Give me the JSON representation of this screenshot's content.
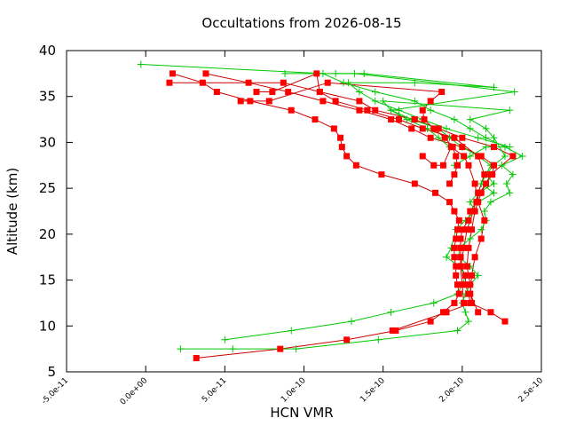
{
  "chart_data": {
    "type": "line",
    "title": "Occultations from 2026-08-15",
    "xlabel": "HCN VMR",
    "ylabel": "Altitude (km)",
    "xlim": [
      -5e-11,
      2.5e-10
    ],
    "ylim": [
      5,
      40
    ],
    "x_ticks": [
      -5e-11,
      0,
      5e-11,
      1e-10,
      1.5e-10,
      2e-10,
      2.5e-10
    ],
    "x_tick_labels": [
      "-5.0e-11",
      "0.0e+00",
      "5.0e-11",
      "1.0e-10",
      "1.5e-10",
      "2.0e-10",
      "2.5e-10"
    ],
    "y_ticks": [
      5,
      10,
      15,
      20,
      25,
      30,
      35,
      40
    ],
    "y_tick_labels": [
      "5",
      "10",
      "15",
      "20",
      "25",
      "30",
      "35",
      "40"
    ],
    "grid": false,
    "legend": "none",
    "colors": {
      "red_series": "#ff0000",
      "red_line": "#cc0000",
      "green_series": "#00c800"
    },
    "series": [
      {
        "marker": "square",
        "color": "#ff0000",
        "points": [
          [
            2.27e-10,
            10.5
          ],
          [
            2.18e-10,
            11.5
          ],
          [
            2.05e-10,
            12.5
          ],
          [
            2.04e-10,
            13.5
          ],
          [
            2.02e-10,
            14.5
          ],
          [
            2.02e-10,
            15.5
          ],
          [
            1.99e-10,
            16.5
          ],
          [
            1.99e-10,
            17.5
          ],
          [
            1.99e-10,
            18.5
          ],
          [
            1.99e-10,
            19.5
          ],
          [
            2e-10,
            20.5
          ],
          [
            2.04e-10,
            21.5
          ],
          [
            2.05e-10,
            22.5
          ],
          [
            2.09e-10,
            23.5
          ],
          [
            2.11e-10,
            24.5
          ],
          [
            2.15e-10,
            25.5
          ],
          [
            2.19e-10,
            26.5
          ],
          [
            2.2e-10,
            27.5
          ],
          [
            2.12e-10,
            28.5
          ],
          [
            2e-10,
            29.5
          ],
          [
            1.8e-10,
            30.5
          ],
          [
            1.68e-10,
            31.5
          ],
          [
            1.55e-10,
            32.5
          ],
          [
            1.35e-10,
            33.5
          ],
          [
            1.12e-10,
            34.5
          ],
          [
            9e-11,
            35.5
          ],
          [
            6.5e-11,
            36.5
          ],
          [
            3.8e-11,
            37.5
          ]
        ]
      },
      {
        "marker": "square",
        "color": "#ff0000",
        "points": [
          [
            3.2e-11,
            6.5
          ],
          [
            8.5e-11,
            7.5
          ],
          [
            1.27e-10,
            8.5
          ],
          [
            1.58e-10,
            9.5
          ],
          [
            1.8e-10,
            10.5
          ],
          [
            1.88e-10,
            11.5
          ],
          [
            1.95e-10,
            12.5
          ],
          [
            1.98e-10,
            13.5
          ],
          [
            1.97e-10,
            14.5
          ],
          [
            1.96e-10,
            15.5
          ],
          [
            1.96e-10,
            16.5
          ],
          [
            1.95e-10,
            17.5
          ],
          [
            1.95e-10,
            18.5
          ],
          [
            1.96e-10,
            19.5
          ],
          [
            1.97e-10,
            20.5
          ],
          [
            1.98e-10,
            21.5
          ],
          [
            1.95e-10,
            22.5
          ],
          [
            1.92e-10,
            23.5
          ],
          [
            1.83e-10,
            24.5
          ],
          [
            1.7e-10,
            25.5
          ],
          [
            1.49e-10,
            26.5
          ],
          [
            1.33e-10,
            27.5
          ],
          [
            1.27e-10,
            28.5
          ],
          [
            1.24e-10,
            29.5
          ],
          [
            1.23e-10,
            30.5
          ],
          [
            1.19e-10,
            31.5
          ],
          [
            1.07e-10,
            32.5
          ],
          [
            9.2e-11,
            33.5
          ],
          [
            6.6e-11,
            34.5
          ],
          [
            4.5e-11,
            35.5
          ],
          [
            3.6e-11,
            36.5
          ],
          [
            1.7e-11,
            37.5
          ]
        ]
      },
      {
        "marker": "square",
        "color": "#ff0000",
        "points": [
          [
            1.56e-10,
            9.5
          ],
          [
            1.9e-10,
            11.5
          ],
          [
            2.06e-10,
            12.5
          ],
          [
            2.05e-10,
            14.5
          ],
          [
            2.03e-10,
            16.5
          ],
          [
            2.04e-10,
            18.5
          ],
          [
            2.06e-10,
            20.5
          ],
          [
            2.08e-10,
            22.5
          ],
          [
            2.12e-10,
            24.5
          ],
          [
            2.18e-10,
            26.5
          ],
          [
            2.32e-10,
            28.5
          ],
          [
            2.2e-10,
            29.5
          ],
          [
            2e-10,
            30.5
          ],
          [
            1.85e-10,
            31.5
          ],
          [
            1.7e-10,
            32.5
          ],
          [
            1.45e-10,
            33.5
          ],
          [
            1.35e-10,
            34.5
          ],
          [
            1.1e-10,
            35.5
          ],
          [
            8.7e-11,
            36.5
          ],
          [
            1.5e-11,
            36.5
          ]
        ]
      },
      {
        "marker": "square",
        "color": "#ff0000",
        "points": [
          [
            2.01e-10,
            12.5
          ],
          [
            2e-10,
            14.5
          ],
          [
            1.99e-10,
            16.5
          ],
          [
            2.01e-10,
            18.5
          ],
          [
            2.03e-10,
            20.5
          ],
          [
            2.07e-10,
            22.5
          ],
          [
            2.1e-10,
            24.5
          ],
          [
            2.14e-10,
            26.5
          ],
          [
            2.1e-10,
            28.5
          ],
          [
            1.95e-10,
            30.5
          ],
          [
            1.75e-10,
            31.5
          ],
          [
            1.6e-10,
            32.5
          ],
          [
            1.4e-10,
            33.5
          ],
          [
            1.2e-10,
            34.5
          ],
          [
            1.1e-10,
            35.5
          ],
          [
            1.08e-10,
            37.5
          ],
          [
            8e-11,
            35.5
          ],
          [
            7e-11,
            35.5
          ]
        ]
      },
      {
        "marker": "square",
        "color": "#ff0000",
        "points": [
          [
            1.92e-10,
            25.5
          ],
          [
            1.95e-10,
            26.5
          ],
          [
            1.97e-10,
            27.5
          ],
          [
            1.96e-10,
            28.5
          ],
          [
            1.94e-10,
            29.5
          ],
          [
            1.89e-10,
            30.5
          ],
          [
            1.82e-10,
            31.5
          ],
          [
            1.76e-10,
            32.5
          ],
          [
            1.75e-10,
            33.5
          ],
          [
            1.8e-10,
            34.5
          ],
          [
            1.87e-10,
            35.5
          ],
          [
            1.15e-10,
            36.5
          ],
          [
            7.8e-11,
            34.5
          ],
          [
            6e-11,
            34.5
          ]
        ]
      },
      {
        "marker": "square",
        "color": "#ff0000",
        "points": [
          [
            1.75e-10,
            28.5
          ],
          [
            1.82e-10,
            27.5
          ],
          [
            1.88e-10,
            27.5
          ],
          [
            1.93e-10,
            29.5
          ],
          [
            2.01e-10,
            28.5
          ],
          [
            2.04e-10,
            27.5
          ],
          [
            2.08e-10,
            25.5
          ],
          [
            2.1e-10,
            23.5
          ],
          [
            2.14e-10,
            21.5
          ],
          [
            2.12e-10,
            19.5
          ],
          [
            2.08e-10,
            17.5
          ],
          [
            2.06e-10,
            15.5
          ],
          [
            2.05e-10,
            13.5
          ],
          [
            2.1e-10,
            11.5
          ]
        ]
      },
      {
        "marker": "cross",
        "color": "#00c800",
        "points": [
          [
            2.2e-11,
            7.5
          ],
          [
            5.5e-11,
            7.5
          ],
          [
            9.5e-11,
            7.5
          ],
          [
            1.47e-10,
            8.5
          ],
          [
            1.97e-10,
            9.5
          ],
          [
            2.04e-10,
            10.5
          ],
          [
            2.02e-10,
            11.5
          ],
          [
            2e-10,
            12.5
          ],
          [
            2.02e-10,
            13.5
          ],
          [
            2.05e-10,
            14.5
          ],
          [
            2.1e-10,
            15.5
          ],
          [
            2.05e-10,
            16.5
          ],
          [
            1.98e-10,
            17.5
          ],
          [
            1.98e-10,
            18.5
          ],
          [
            2.05e-10,
            19.5
          ],
          [
            2.12e-10,
            20.5
          ],
          [
            2.15e-10,
            21.5
          ],
          [
            2.14e-10,
            22.5
          ],
          [
            2.18e-10,
            23.5
          ],
          [
            2.3e-10,
            24.5
          ],
          [
            2.28e-10,
            25.5
          ],
          [
            2.32e-10,
            26.5
          ],
          [
            2.25e-10,
            27.5
          ],
          [
            2.38e-10,
            28.5
          ],
          [
            2.27e-10,
            29.5
          ],
          [
            2.15e-10,
            30.5
          ],
          [
            2.05e-10,
            31.5
          ],
          [
            1.95e-10,
            32.5
          ],
          [
            1.8e-10,
            33.5
          ],
          [
            1.7e-10,
            34.5
          ],
          [
            1.45e-10,
            35.5
          ],
          [
            1.25e-10,
            36.5
          ],
          [
            1.12e-10,
            37.5
          ],
          [
            -3e-12,
            38.5
          ]
        ]
      },
      {
        "marker": "cross",
        "color": "#00c800",
        "points": [
          [
            5e-11,
            8.5
          ],
          [
            9.2e-11,
            9.5
          ],
          [
            1.3e-10,
            10.5
          ],
          [
            1.55e-10,
            11.5
          ],
          [
            1.82e-10,
            12.5
          ],
          [
            1.97e-10,
            13.5
          ],
          [
            2e-10,
            14.5
          ],
          [
            2.02e-10,
            15.5
          ],
          [
            1.98e-10,
            16.5
          ],
          [
            1.9e-10,
            17.5
          ],
          [
            1.93e-10,
            18.5
          ],
          [
            1.96e-10,
            20.5
          ],
          [
            2.02e-10,
            21.5
          ],
          [
            2.08e-10,
            22.5
          ],
          [
            2.05e-10,
            23.5
          ],
          [
            2.1e-10,
            24.5
          ],
          [
            2.2e-10,
            25.5
          ],
          [
            2.15e-10,
            26.5
          ],
          [
            2.18e-10,
            27.5
          ],
          [
            2.1e-10,
            28.5
          ],
          [
            2e-10,
            29.5
          ],
          [
            1.92e-10,
            30.5
          ],
          [
            1.85e-10,
            31.5
          ],
          [
            1.68e-10,
            32.5
          ],
          [
            1.55e-10,
            33.5
          ],
          [
            2.33e-10,
            35.5
          ],
          [
            1.32e-10,
            37.5
          ],
          [
            1.2e-10,
            37.5
          ]
        ]
      },
      {
        "marker": "cross",
        "color": "#00c800",
        "points": [
          [
            1.95e-10,
            27.5
          ],
          [
            2.05e-10,
            28.5
          ],
          [
            2.15e-10,
            29.5
          ],
          [
            2.3e-10,
            29.5
          ],
          [
            2.1e-10,
            30.5
          ],
          [
            1.9e-10,
            31.5
          ],
          [
            1.75e-10,
            32.5
          ],
          [
            1.6e-10,
            33.5
          ],
          [
            1.45e-10,
            34.5
          ],
          [
            1.35e-10,
            35.5
          ],
          [
            1.28e-10,
            36.5
          ],
          [
            1.7e-10,
            36.5
          ],
          [
            2.2e-10,
            36.0
          ],
          [
            1.38e-10,
            37.5
          ],
          [
            8.8e-11,
            37.5
          ]
        ]
      },
      {
        "marker": "cross",
        "color": "#00c800",
        "points": [
          [
            1.92e-10,
            29.5
          ],
          [
            1.85e-10,
            30.5
          ],
          [
            1.78e-10,
            31.5
          ],
          [
            1.65e-10,
            32.5
          ],
          [
            1.55e-10,
            33.5
          ],
          [
            1.5e-10,
            34.5
          ],
          [
            2.3e-10,
            33.5
          ],
          [
            2.05e-10,
            32.5
          ],
          [
            2.15e-10,
            31.5
          ],
          [
            2.2e-10,
            30.5
          ],
          [
            2.27e-10,
            28.5
          ],
          [
            2.2e-10,
            27.5
          ],
          [
            2.15e-10,
            26.5
          ],
          [
            2.12e-10,
            25.5
          ],
          [
            2.2e-10,
            24.5
          ],
          [
            2.1e-10,
            23.5
          ]
        ]
      }
    ]
  }
}
